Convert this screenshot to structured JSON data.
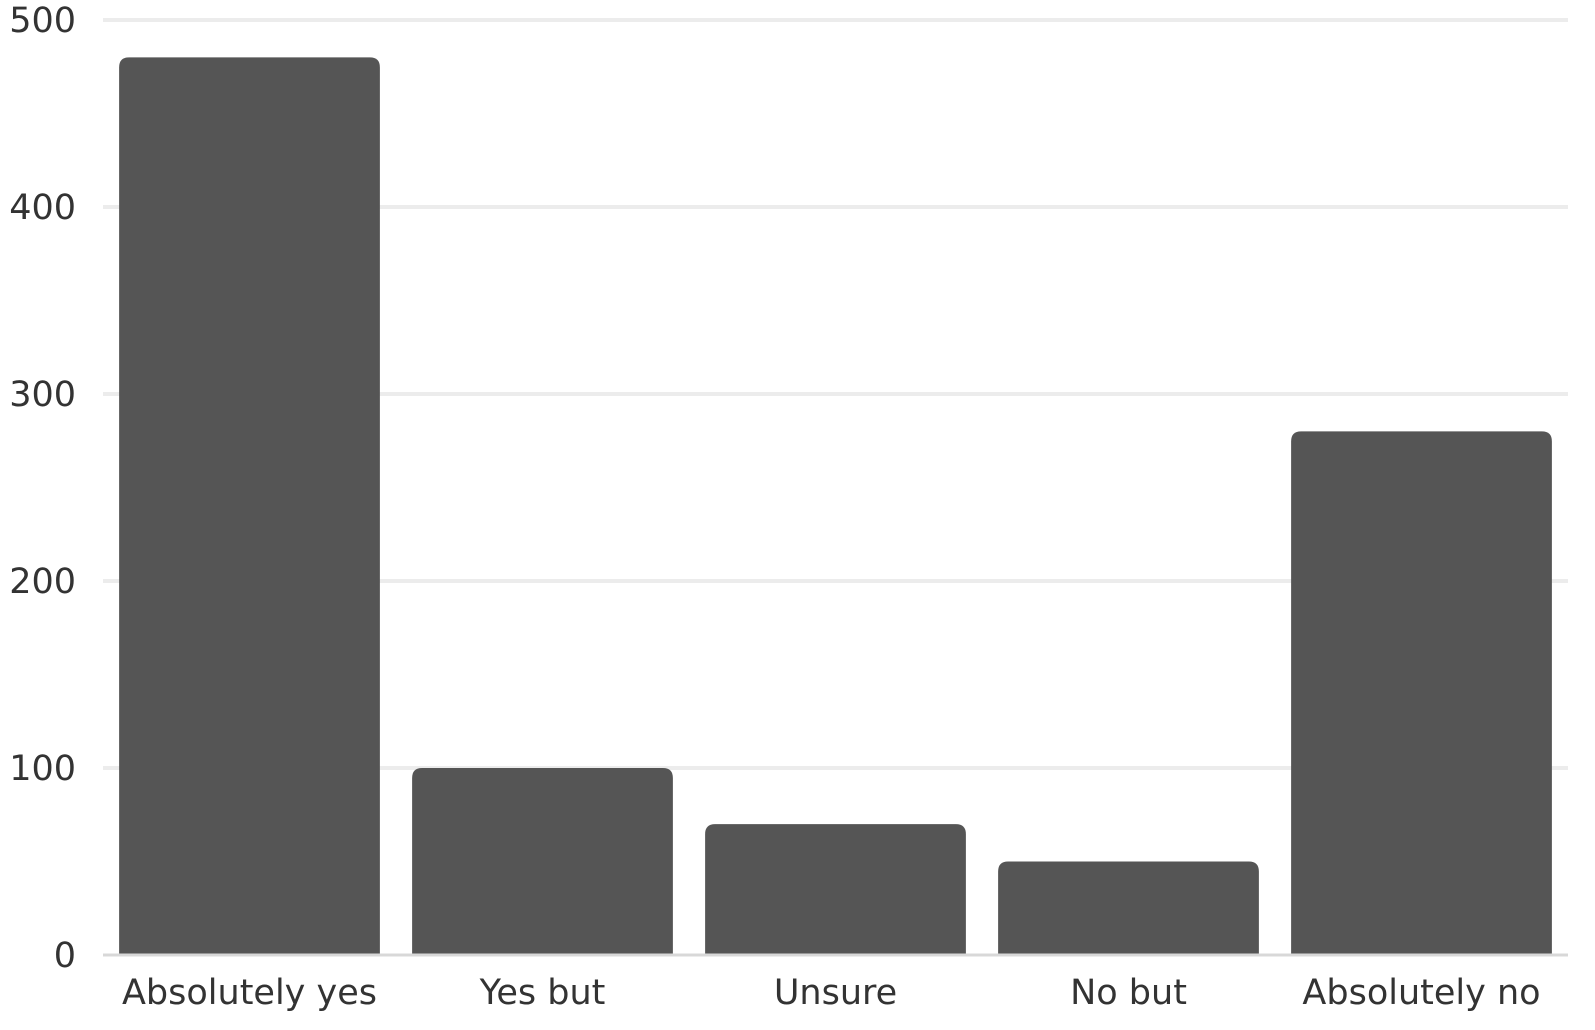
{
  "chart_data": {
    "type": "bar",
    "categories": [
      "Absolutely yes",
      "Yes but",
      "Unsure",
      "No but",
      "Absolutely no"
    ],
    "values": [
      480,
      100,
      70,
      50,
      280
    ],
    "ylim": [
      0,
      500
    ],
    "yticks": [
      0,
      100,
      200,
      300,
      400,
      500
    ],
    "title": "",
    "xlabel": "",
    "ylabel": "",
    "grid": true,
    "legend": "none",
    "bar_color": "#555555",
    "grid_color": "#ececec"
  }
}
